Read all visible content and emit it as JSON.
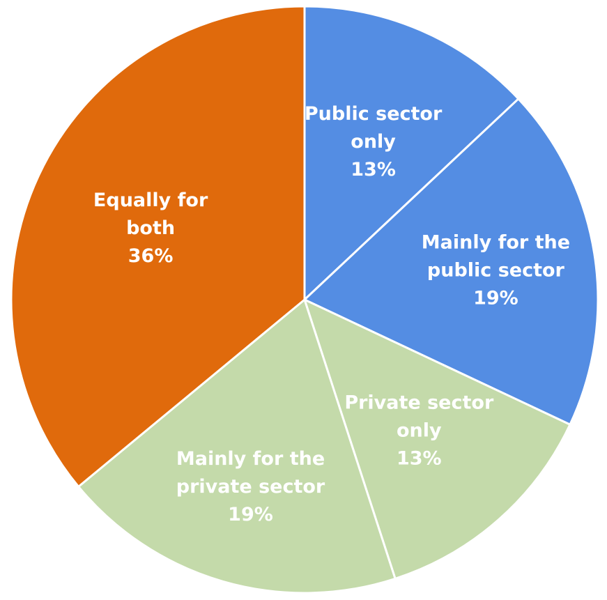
{
  "chart_data": {
    "type": "pie",
    "title": "",
    "start_angle_deg": 0,
    "direction": "clockwise",
    "slices": [
      {
        "label": "Public sector only",
        "label_lines": [
          "Public sector",
          "only",
          "13%"
        ],
        "value": 13,
        "display": "13%",
        "color": "#548DE3"
      },
      {
        "label": "Mainly for the public sector",
        "label_lines": [
          "Mainly for the",
          "public sector",
          "19%"
        ],
        "value": 19,
        "display": "19%",
        "color": "#548DE3"
      },
      {
        "label": "Private sector only",
        "label_lines": [
          "Private sector",
          "only",
          "13%"
        ],
        "value": 13,
        "display": "13%",
        "color": "#C4DAAA"
      },
      {
        "label": "Mainly for the private sector",
        "label_lines": [
          "Mainly for the",
          "private sector",
          "19%"
        ],
        "value": 19,
        "display": "19%",
        "color": "#C4DAAA"
      },
      {
        "label": "Equally for both",
        "label_lines": [
          "Equally for",
          "both",
          "36%"
        ],
        "value": 36,
        "display": "36%",
        "color": "#E06A0C"
      }
    ]
  }
}
